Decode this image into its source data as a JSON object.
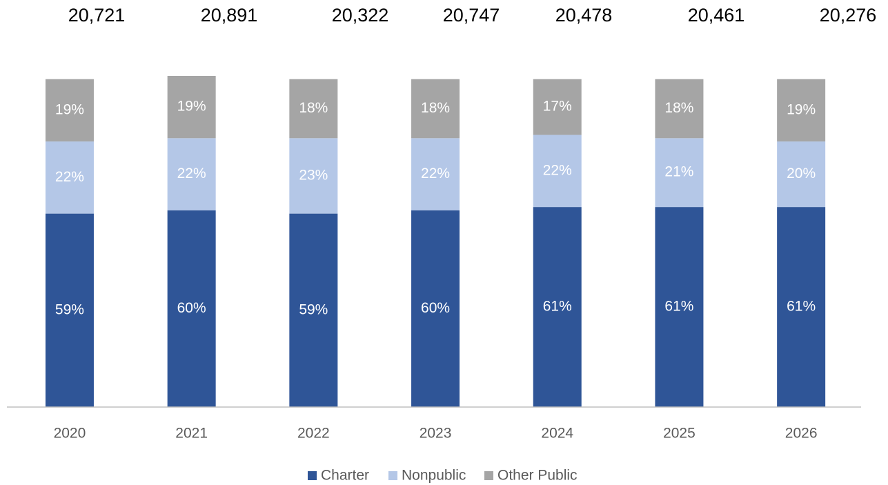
{
  "chart_data": {
    "type": "stacked_bar",
    "categories": [
      "2020",
      "2021",
      "2022",
      "2023",
      "2024",
      "2025",
      "2026"
    ],
    "series": [
      {
        "name": "Charter",
        "color": "#2f5597",
        "values": [
          59,
          60,
          59,
          60,
          61,
          61,
          61
        ],
        "value_labels": [
          "59%",
          "60%",
          "59%",
          "60%",
          "61%",
          "61%",
          "61%"
        ]
      },
      {
        "name": "Nonpublic",
        "color": "#b4c7e7",
        "values": [
          22,
          22,
          23,
          22,
          22,
          21,
          20
        ],
        "value_labels": [
          "22%",
          "22%",
          "23%",
          "22%",
          "22%",
          "21%",
          "20%"
        ]
      },
      {
        "name": "Other Public",
        "color": "#a5a5a5",
        "values": [
          19,
          19,
          18,
          18,
          17,
          18,
          19
        ],
        "value_labels": [
          "19%",
          "19%",
          "18%",
          "18%",
          "17%",
          "18%",
          "19%"
        ]
      }
    ],
    "totals": {
      "values": [
        20721,
        20891,
        20322,
        20747,
        20478,
        20461,
        20276
      ],
      "value_labels": [
        "20,721",
        "20,891",
        "20,322",
        "20,747",
        "20,478",
        "20,461",
        "20,276"
      ]
    },
    "legend": "bottom"
  }
}
